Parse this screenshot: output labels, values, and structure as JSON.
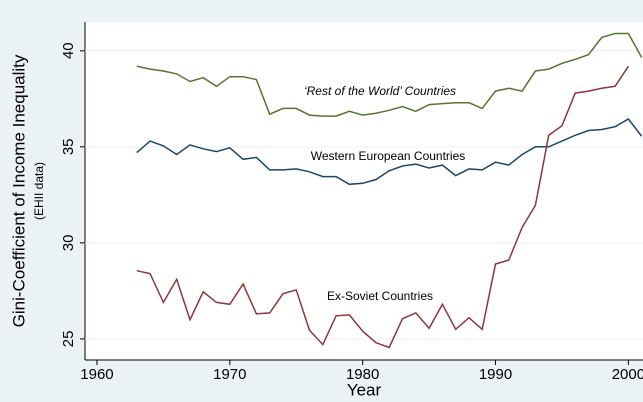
{
  "chart_data": {
    "type": "line",
    "xlabel": "Year",
    "ylabel": "Gini-Coefficient of Income Inequality",
    "ylabel_sub": "(EHII data)",
    "x": [
      1963,
      1964,
      1965,
      1966,
      1967,
      1968,
      1969,
      1970,
      1971,
      1972,
      1973,
      1974,
      1975,
      1976,
      1977,
      1978,
      1979,
      1980,
      1981,
      1982,
      1983,
      1984,
      1985,
      1986,
      1987,
      1988,
      1989,
      1990,
      1991,
      1992,
      1993,
      1994,
      1995,
      1996,
      1997,
      1998,
      1999,
      2000,
      2001
    ],
    "series": [
      {
        "name": "‘Rest of the World’ Countries",
        "color": "#55752f",
        "values": [
          39.2,
          39.05,
          38.95,
          38.8,
          38.4,
          38.6,
          38.15,
          38.65,
          38.65,
          38.5,
          36.7,
          37.0,
          37.0,
          36.65,
          36.6,
          36.6,
          36.85,
          36.65,
          36.75,
          36.9,
          37.1,
          36.85,
          37.2,
          37.25,
          37.3,
          37.3,
          37.0,
          37.9,
          38.05,
          37.9,
          38.95,
          39.05,
          39.35,
          39.55,
          39.8,
          40.7,
          40.9,
          40.9,
          39.65
        ]
      },
      {
        "name": "Western European Countries",
        "color": "#1a476f",
        "values": [
          34.7,
          35.3,
          35.05,
          34.6,
          35.1,
          34.9,
          34.75,
          34.95,
          34.35,
          34.45,
          33.8,
          33.8,
          33.85,
          33.7,
          33.45,
          33.45,
          33.05,
          33.1,
          33.3,
          33.75,
          34.0,
          34.1,
          33.9,
          34.05,
          33.5,
          33.85,
          33.8,
          34.2,
          34.05,
          34.6,
          35.0,
          35.0,
          35.3,
          35.6,
          35.85,
          35.9,
          36.05,
          36.45,
          35.55
        ]
      },
      {
        "name": "Ex-Soviet Countries",
        "color": "#90353b",
        "values": [
          28.55,
          28.4,
          26.9,
          28.1,
          26.0,
          27.45,
          26.9,
          26.8,
          27.85,
          26.3,
          26.35,
          27.35,
          27.55,
          25.45,
          24.7,
          26.2,
          26.25,
          25.4,
          24.8,
          24.55,
          26.05,
          26.35,
          25.55,
          26.8,
          25.5,
          26.1,
          25.5,
          28.9,
          29.1,
          30.8,
          31.95,
          35.6,
          36.1,
          37.8,
          37.9,
          38.05,
          38.15,
          39.2,
          null
        ]
      }
    ],
    "xlim": [
      1959.1,
      2001.1
    ],
    "xticks": [
      1960,
      1970,
      1980,
      1990,
      2000
    ],
    "ylim": [
      23.9,
      41.5
    ],
    "yticks": [
      25,
      30,
      35,
      40
    ],
    "grid": true
  }
}
